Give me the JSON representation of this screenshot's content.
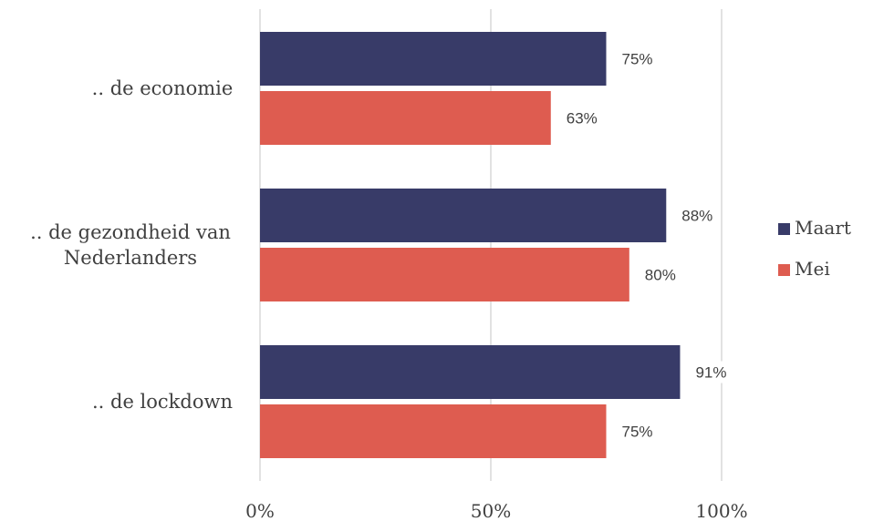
{
  "chart_data": {
    "type": "bar",
    "orientation": "horizontal",
    "title": "",
    "xlabel": "",
    "ylabel": "",
    "categories": [
      ".. de economie",
      ".. de gezondheid van Nederlanders",
      ".. de lockdown"
    ],
    "category_lines": [
      [
        ".. de economie"
      ],
      [
        ".. de gezondheid van",
        "Nederlanders"
      ],
      [
        ".. de lockdown"
      ]
    ],
    "series": [
      {
        "name": "Maart",
        "color": "#383b68",
        "values": [
          75,
          88,
          91
        ],
        "labels": [
          "75%",
          "88%",
          "91%"
        ]
      },
      {
        "name": "Mei",
        "color": "#de5c50",
        "values": [
          63,
          80,
          75
        ],
        "labels": [
          "63%",
          "80%",
          "75%"
        ]
      }
    ],
    "xlim": [
      0,
      100
    ],
    "xticks": [
      0,
      50,
      100
    ],
    "xtick_labels": [
      "0%",
      "50%",
      "100%"
    ],
    "grid": true,
    "legend": "right"
  }
}
